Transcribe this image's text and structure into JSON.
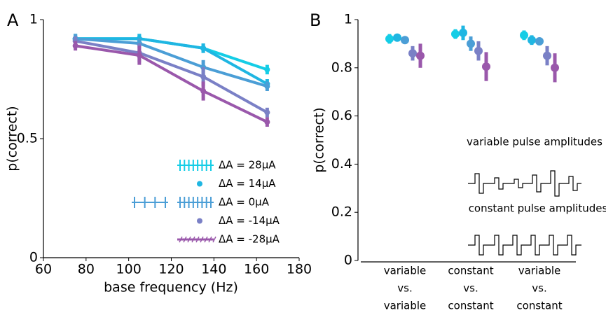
{
  "chart_data": [
    {
      "type": "line",
      "panel_label": "A",
      "x_label": "base frequency (Hz)",
      "y_label": "p(correct)",
      "x": [
        75,
        105,
        135,
        165
      ],
      "xlim": [
        60,
        180
      ],
      "xticks": [
        60,
        80,
        100,
        120,
        140,
        160,
        180
      ],
      "ylim": [
        0,
        1
      ],
      "yticks": [
        0,
        0.5,
        1
      ],
      "series": [
        {
          "name": "ΔA = 28μA",
          "color": "#14cde6",
          "values": [
            0.92,
            0.92,
            0.88,
            0.79
          ],
          "errors": [
            0.02,
            0.02,
            0.02,
            0.02
          ]
        },
        {
          "name": "ΔA = 14μA",
          "color": "#1fb6e2",
          "values": [
            0.92,
            0.92,
            0.88,
            0.73
          ],
          "errors": [
            0.02,
            0.02,
            0.02,
            0.02
          ]
        },
        {
          "name": "ΔA = 0μA",
          "color": "#4b9ed6",
          "values": [
            0.92,
            0.9,
            0.8,
            0.72
          ],
          "errors": [
            0.02,
            0.02,
            0.03,
            0.02
          ]
        },
        {
          "name": "ΔA = -14μA",
          "color": "#7a80c6",
          "values": [
            0.91,
            0.86,
            0.76,
            0.61
          ],
          "errors": [
            0.02,
            0.04,
            0.04,
            0.02
          ]
        },
        {
          "name": "ΔA = -28μA",
          "color": "#9a58ab",
          "values": [
            0.89,
            0.85,
            0.7,
            0.57
          ],
          "errors": [
            0.02,
            0.04,
            0.04,
            0.02
          ]
        }
      ]
    },
    {
      "type": "dot",
      "panel_label": "B",
      "y_label": "p(correct)",
      "categories": [
        [
          "variable",
          "vs.",
          "variable"
        ],
        [
          "constant",
          "vs.",
          "constant"
        ],
        [
          "variable",
          "vs.",
          "constant"
        ]
      ],
      "ylim": [
        0,
        1
      ],
      "yticks": [
        0,
        0.2,
        0.4,
        0.6,
        0.8,
        1
      ],
      "annotations": [
        "variable pulse amplitudes",
        "constant pulse amplitudes"
      ],
      "series": [
        {
          "color": "#14cde6",
          "values": [
            0.92,
            0.94,
            0.935
          ],
          "errors": [
            0.02,
            0.02,
            0.02
          ]
        },
        {
          "color": "#1fb6e2",
          "values": [
            0.925,
            0.945,
            0.915
          ],
          "errors": [
            0.015,
            0.03,
            0.02
          ]
        },
        {
          "color": "#4b9ed6",
          "values": [
            0.915,
            0.9,
            0.91
          ],
          "errors": [
            0.01,
            0.03,
            0.01
          ]
        },
        {
          "color": "#7a80c6",
          "values": [
            0.86,
            0.87,
            0.85
          ],
          "errors": [
            0.03,
            0.04,
            0.04
          ]
        },
        {
          "color": "#9a58ab",
          "values": [
            0.85,
            0.805,
            0.8
          ],
          "errors": [
            0.05,
            0.06,
            0.06
          ]
        }
      ]
    }
  ]
}
